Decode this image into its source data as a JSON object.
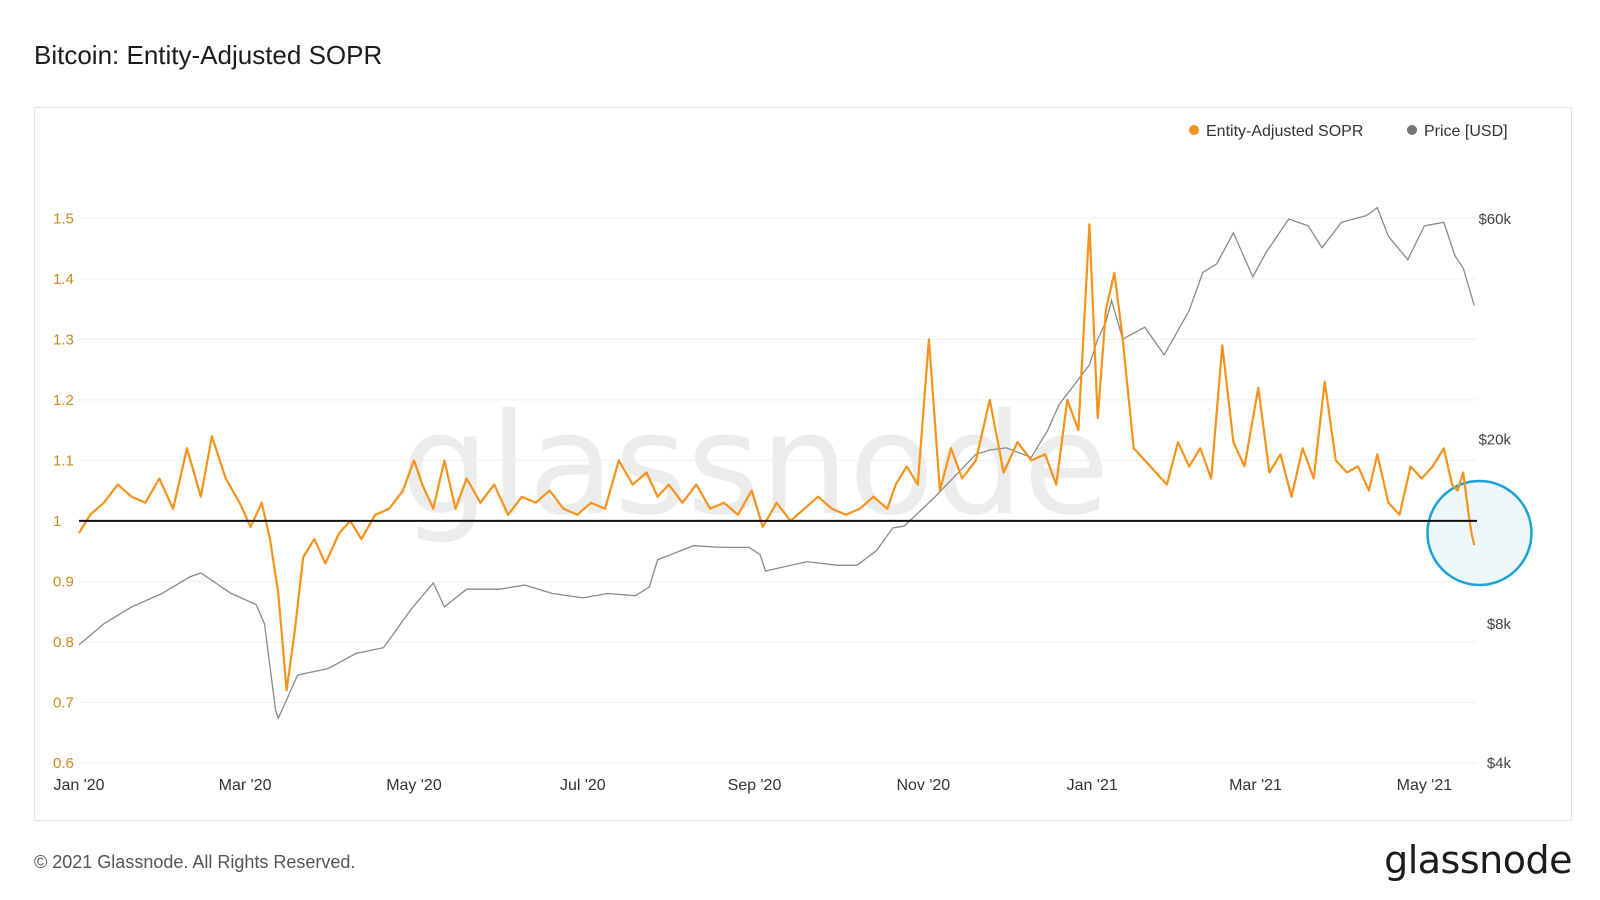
{
  "page": {
    "title": "Bitcoin: Entity-Adjusted SOPR",
    "copyright": "© 2021 Glassnode. All Rights Reserved.",
    "logo": "glassnode",
    "watermark": "glassnode"
  },
  "colors": {
    "sopr": "#f7931a",
    "price": "#8a8a8a",
    "baseline": "#111111",
    "highlight": "#1aa3d6",
    "highlight_fill": "#eef8fb",
    "grid": "#efefef"
  },
  "chart_data": {
    "type": "line",
    "title": "Bitcoin: Entity-Adjusted SOPR",
    "legend": {
      "placement": "top-right",
      "entries": [
        "Entity-Adjusted SOPR",
        "Price [USD]"
      ]
    },
    "grid": true,
    "x_ticks": [
      "Jan '20",
      "Mar '20",
      "May '20",
      "Jul '20",
      "Sep '20",
      "Nov '20",
      "Jan '21",
      "Mar '21",
      "May '21"
    ],
    "x_tick_dates": [
      "2020-01-01",
      "2020-03-01",
      "2020-05-01",
      "2020-07-01",
      "2020-09-01",
      "2020-11-01",
      "2021-01-01",
      "2021-03-01",
      "2021-05-01"
    ],
    "x_range": [
      "2020-01-01",
      "2021-05-20"
    ],
    "y_left": {
      "range": [
        0.6,
        1.55
      ],
      "ticks": [
        0.6,
        0.7,
        0.8,
        0.9,
        1,
        1.1,
        1.2,
        1.3,
        1.4,
        1.5
      ],
      "tick_labels": [
        "0.6",
        "0.7",
        "0.8",
        "0.9",
        "1",
        "1.1",
        "1.2",
        "1.3",
        "1.4",
        "1.5"
      ]
    },
    "y_right": {
      "scale": "log",
      "range": [
        4000,
        70000
      ],
      "ticks": [
        4000,
        8000,
        20000,
        60000
      ],
      "tick_labels": [
        "$4k",
        "$8k",
        "$20k",
        "$60k"
      ]
    },
    "reference_line": {
      "y": 1,
      "axis": "left"
    },
    "highlight": {
      "date": "2021-05-18",
      "y": 0.98,
      "axis": "left"
    },
    "series": [
      {
        "name": "Entity-Adjusted SOPR",
        "axis": "left",
        "x": [
          "2020-01-01",
          "2020-01-05",
          "2020-01-10",
          "2020-01-15",
          "2020-01-20",
          "2020-01-25",
          "2020-01-30",
          "2020-02-04",
          "2020-02-09",
          "2020-02-14",
          "2020-02-18",
          "2020-02-23",
          "2020-02-28",
          "2020-03-03",
          "2020-03-07",
          "2020-03-10",
          "2020-03-13",
          "2020-03-16",
          "2020-03-19",
          "2020-03-22",
          "2020-03-26",
          "2020-03-30",
          "2020-04-04",
          "2020-04-08",
          "2020-04-12",
          "2020-04-17",
          "2020-04-22",
          "2020-04-27",
          "2020-05-01",
          "2020-05-04",
          "2020-05-08",
          "2020-05-12",
          "2020-05-16",
          "2020-05-20",
          "2020-05-25",
          "2020-05-30",
          "2020-06-04",
          "2020-06-09",
          "2020-06-14",
          "2020-06-19",
          "2020-06-24",
          "2020-06-29",
          "2020-07-04",
          "2020-07-09",
          "2020-07-14",
          "2020-07-19",
          "2020-07-24",
          "2020-07-28",
          "2020-08-01",
          "2020-08-06",
          "2020-08-11",
          "2020-08-16",
          "2020-08-21",
          "2020-08-26",
          "2020-08-31",
          "2020-09-04",
          "2020-09-09",
          "2020-09-14",
          "2020-09-19",
          "2020-09-24",
          "2020-09-29",
          "2020-10-04",
          "2020-10-09",
          "2020-10-14",
          "2020-10-19",
          "2020-10-22",
          "2020-10-26",
          "2020-10-30",
          "2020-11-03",
          "2020-11-07",
          "2020-11-11",
          "2020-11-15",
          "2020-11-20",
          "2020-11-25",
          "2020-11-30",
          "2020-12-05",
          "2020-12-10",
          "2020-12-15",
          "2020-12-19",
          "2020-12-23",
          "2020-12-27",
          "2020-12-31",
          "2021-01-03",
          "2021-01-06",
          "2021-01-09",
          "2021-01-12",
          "2021-01-16",
          "2021-01-20",
          "2021-01-24",
          "2021-01-28",
          "2021-02-01",
          "2021-02-05",
          "2021-02-09",
          "2021-02-13",
          "2021-02-17",
          "2021-02-21",
          "2021-02-25",
          "2021-03-02",
          "2021-03-06",
          "2021-03-10",
          "2021-03-14",
          "2021-03-18",
          "2021-03-22",
          "2021-03-26",
          "2021-03-30",
          "2021-04-03",
          "2021-04-07",
          "2021-04-11",
          "2021-04-14",
          "2021-04-18",
          "2021-04-22",
          "2021-04-26",
          "2021-04-30",
          "2021-05-04",
          "2021-05-08",
          "2021-05-11",
          "2021-05-13",
          "2021-05-15",
          "2021-05-17",
          "2021-05-18",
          "2021-05-19"
        ],
        "values": [
          0.98,
          1.01,
          1.03,
          1.06,
          1.04,
          1.03,
          1.07,
          1.02,
          1.12,
          1.04,
          1.14,
          1.07,
          1.03,
          0.99,
          1.03,
          0.97,
          0.88,
          0.72,
          0.82,
          0.94,
          0.97,
          0.93,
          0.98,
          1.0,
          0.97,
          1.01,
          1.02,
          1.05,
          1.1,
          1.06,
          1.02,
          1.1,
          1.02,
          1.07,
          1.03,
          1.06,
          1.01,
          1.04,
          1.03,
          1.05,
          1.02,
          1.01,
          1.03,
          1.02,
          1.1,
          1.06,
          1.08,
          1.04,
          1.06,
          1.03,
          1.06,
          1.02,
          1.03,
          1.01,
          1.05,
          0.99,
          1.03,
          1.0,
          1.02,
          1.04,
          1.02,
          1.01,
          1.02,
          1.04,
          1.02,
          1.06,
          1.09,
          1.06,
          1.3,
          1.05,
          1.12,
          1.07,
          1.1,
          1.2,
          1.08,
          1.13,
          1.1,
          1.11,
          1.06,
          1.2,
          1.15,
          1.49,
          1.17,
          1.35,
          1.41,
          1.3,
          1.12,
          1.1,
          1.08,
          1.06,
          1.13,
          1.09,
          1.12,
          1.07,
          1.29,
          1.13,
          1.09,
          1.22,
          1.08,
          1.11,
          1.04,
          1.12,
          1.07,
          1.23,
          1.1,
          1.08,
          1.09,
          1.05,
          1.11,
          1.03,
          1.01,
          1.09,
          1.07,
          1.09,
          1.12,
          1.06,
          1.05,
          1.08,
          1.01,
          0.98,
          0.96
        ]
      },
      {
        "name": "Price [USD]",
        "axis": "right",
        "x": [
          "2020-01-01",
          "2020-01-10",
          "2020-01-20",
          "2020-01-31",
          "2020-02-10",
          "2020-02-14",
          "2020-02-25",
          "2020-03-05",
          "2020-03-08",
          "2020-03-12",
          "2020-03-13",
          "2020-03-20",
          "2020-03-31",
          "2020-04-10",
          "2020-04-20",
          "2020-04-30",
          "2020-05-08",
          "2020-05-12",
          "2020-05-20",
          "2020-06-01",
          "2020-06-10",
          "2020-06-20",
          "2020-07-01",
          "2020-07-10",
          "2020-07-20",
          "2020-07-25",
          "2020-07-28",
          "2020-08-10",
          "2020-08-20",
          "2020-08-30",
          "2020-09-03",
          "2020-09-05",
          "2020-09-20",
          "2020-10-01",
          "2020-10-08",
          "2020-10-15",
          "2020-10-21",
          "2020-10-25",
          "2020-11-05",
          "2020-11-20",
          "2020-11-25",
          "2020-12-01",
          "2020-12-10",
          "2020-12-16",
          "2020-12-20",
          "2020-12-31",
          "2021-01-03",
          "2021-01-06",
          "2021-01-08",
          "2021-01-12",
          "2021-01-20",
          "2021-01-27",
          "2021-02-05",
          "2021-02-10",
          "2021-02-15",
          "2021-02-21",
          "2021-02-28",
          "2021-03-05",
          "2021-03-13",
          "2021-03-20",
          "2021-03-25",
          "2021-04-01",
          "2021-04-10",
          "2021-04-14",
          "2021-04-18",
          "2021-04-25",
          "2021-05-01",
          "2021-05-08",
          "2021-05-12",
          "2021-05-15",
          "2021-05-19"
        ],
        "values": [
          7200,
          8000,
          8700,
          9300,
          10100,
          10300,
          9300,
          8800,
          8000,
          5200,
          5000,
          6200,
          6400,
          6900,
          7100,
          8600,
          9800,
          8700,
          9500,
          9500,
          9700,
          9300,
          9100,
          9300,
          9200,
          9600,
          11000,
          11800,
          11700,
          11700,
          11300,
          10400,
          10900,
          10700,
          10700,
          11500,
          12900,
          13000,
          15000,
          18600,
          19000,
          19200,
          18300,
          21000,
          23800,
          29000,
          33000,
          36000,
          40000,
          33000,
          35000,
          30500,
          38000,
          46000,
          48000,
          56000,
          45000,
          51000,
          60000,
          58000,
          52000,
          59000,
          61000,
          63500,
          55000,
          49000,
          58000,
          59000,
          50000,
          47000,
          39000
        ]
      }
    ]
  }
}
